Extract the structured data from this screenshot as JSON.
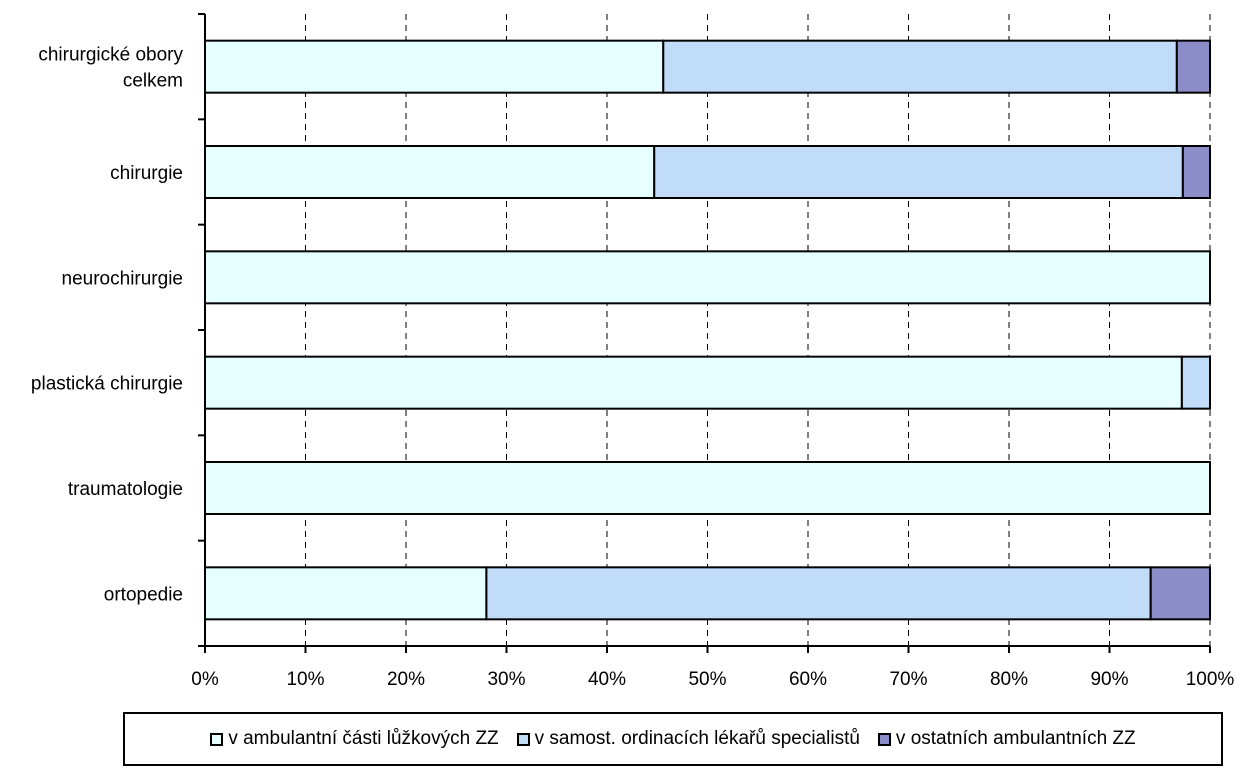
{
  "chart_data": {
    "type": "bar",
    "orientation": "horizontal",
    "stacked": "percent",
    "categories": [
      "chirurgické obory celkem",
      "chirurgie",
      "neurochirurgie",
      "plastická chirurgie",
      "traumatologie",
      "ortopedie"
    ],
    "series": [
      {
        "name": "v ambulantní části lůžkových ZZ",
        "values": [
          45.6,
          44.7,
          100,
          97.2,
          100,
          28.0
        ],
        "color": "#e6ffff"
      },
      {
        "name": "v samost. ordinacích lékařů specialistů",
        "values": [
          51.1,
          52.6,
          0,
          2.8,
          0,
          66.1
        ],
        "color": "#c0dcf8"
      },
      {
        "name": "v ostatních ambulantních ZZ",
        "values": [
          3.3,
          2.7,
          0,
          0,
          0,
          5.9
        ],
        "color": "#8c8cc8"
      }
    ],
    "x_ticks": [
      "0%",
      "10%",
      "20%",
      "30%",
      "40%",
      "50%",
      "60%",
      "70%",
      "80%",
      "90%",
      "100%"
    ],
    "xlim": [
      0,
      100
    ],
    "grid": {
      "x": "dashed",
      "y": false
    },
    "legend_position": "bottom",
    "title": "",
    "xlabel": "",
    "ylabel": ""
  }
}
